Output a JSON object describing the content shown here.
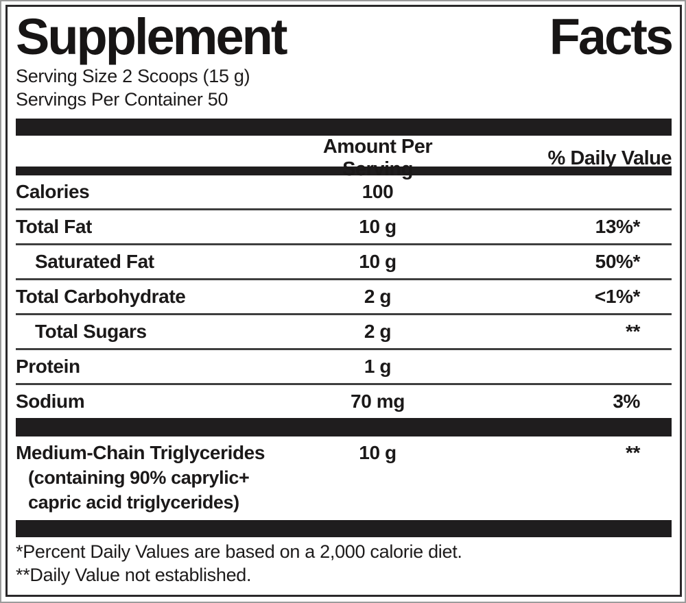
{
  "colors": {
    "bar": "#1f1d1e",
    "text": "#1b1919",
    "divider": "#3e3e3e",
    "border": "#2a282a"
  },
  "label": {
    "title": {
      "left": "Supplement",
      "right": "Facts"
    },
    "serving_size": "Serving Size 2 Scoops (15 g)",
    "servings_per_container": "Servings Per Container 50",
    "header": {
      "amount": "Amount Per Serving",
      "daily_value": "% Daily Value"
    },
    "rows": [
      {
        "name": "Calories",
        "amount": "100",
        "daily_value": "",
        "indent": false
      },
      {
        "name": "Total Fat",
        "amount": "10 g",
        "daily_value": "13%*",
        "indent": false
      },
      {
        "name": "Saturated Fat",
        "amount": "10 g",
        "daily_value": "50%*",
        "indent": true
      },
      {
        "name": "Total Carbohydrate",
        "amount": "2 g",
        "daily_value": "<1%*",
        "indent": false
      },
      {
        "name": "Total Sugars",
        "amount": "2 g",
        "daily_value": "**",
        "indent": true
      },
      {
        "name": "Protein",
        "amount": "1 g",
        "daily_value": "",
        "indent": false
      },
      {
        "name": "Sodium",
        "amount": "70 mg",
        "daily_value": "3%",
        "indent": false
      }
    ],
    "other_ingredient": {
      "name": "Medium-Chain Triglycerides",
      "detail_line1": "(containing 90% caprylic+",
      "detail_line2": "capric acid triglycerides)",
      "amount": "10 g",
      "daily_value": "**"
    },
    "footnotes": {
      "percent_dv": "*Percent Daily Values are based on a 2,000 calorie diet.",
      "not_established": "**Daily Value not established."
    }
  }
}
